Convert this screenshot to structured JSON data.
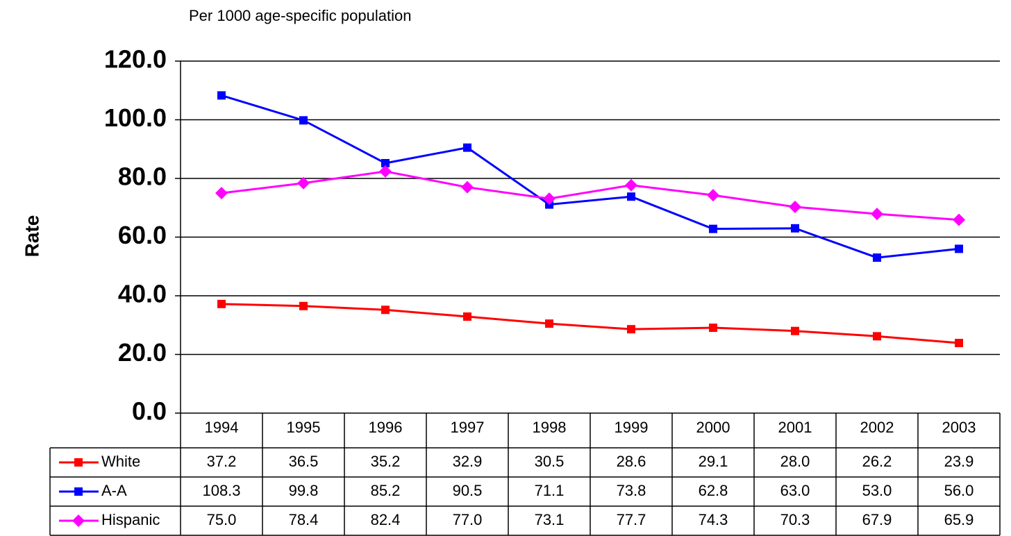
{
  "chart_data": {
    "type": "line",
    "title": "Per 1000 age-specific population",
    "y_label": "Rate",
    "categories": [
      "1994",
      "1995",
      "1996",
      "1997",
      "1998",
      "1999",
      "2000",
      "2001",
      "2002",
      "2003"
    ],
    "series": [
      {
        "name": "White",
        "color": "#ff0000",
        "marker": "square",
        "values": [
          37.2,
          36.5,
          35.2,
          32.9,
          30.5,
          28.6,
          29.1,
          28.0,
          26.2,
          23.9
        ],
        "value_labels": [
          "37.2",
          "36.5",
          "35.2",
          "32.9",
          "30.5",
          "28.6",
          "29.1",
          "28.0",
          "26.2",
          "23.9"
        ]
      },
      {
        "name": "A-A",
        "color": "#0000ff",
        "marker": "square",
        "values": [
          108.3,
          99.8,
          85.2,
          90.5,
          71.1,
          73.8,
          62.8,
          63.0,
          53.0,
          56.0
        ],
        "value_labels": [
          "108.3",
          "99.8",
          "85.2",
          "90.5",
          "71.1",
          "73.8",
          "62.8",
          "63.0",
          "53.0",
          "56.0"
        ]
      },
      {
        "name": "Hispanic",
        "color": "#ff00ff",
        "marker": "diamond",
        "values": [
          75.0,
          78.4,
          82.4,
          77.0,
          73.1,
          77.7,
          74.3,
          70.3,
          67.9,
          65.9
        ],
        "value_labels": [
          "75.0",
          "78.4",
          "82.4",
          "77.0",
          "73.1",
          "77.7",
          "74.3",
          "70.3",
          "67.9",
          "65.9"
        ]
      }
    ],
    "ylim": [
      0,
      120
    ],
    "yticks": [
      {
        "value": 0,
        "label": "0.0"
      },
      {
        "value": 20,
        "label": "20.0"
      },
      {
        "value": 40,
        "label": "40.0"
      },
      {
        "value": 60,
        "label": "60.0"
      },
      {
        "value": 80,
        "label": "80.0"
      },
      {
        "value": 100,
        "label": "100.0"
      },
      {
        "value": 120,
        "label": "120.0"
      }
    ],
    "grid": true
  }
}
